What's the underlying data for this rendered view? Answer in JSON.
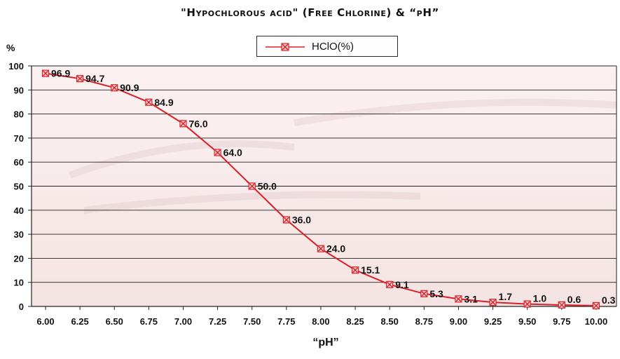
{
  "chart_data": {
    "type": "line",
    "title": "\"Hypochlorous acid\" (Free Chlorine)  &  “pH”",
    "xlabel": "“pH”",
    "ylabel": "%",
    "x": [
      "6.00",
      "6.25",
      "6.50",
      "6.75",
      "7.00",
      "7.25",
      "7.50",
      "7.75",
      "8.00",
      "8.25",
      "8.50",
      "8.75",
      "9.00",
      "9.25",
      "9.50",
      "9.75",
      "10.00"
    ],
    "series": [
      {
        "name": "HClO(%)",
        "values": [
          96.9,
          94.7,
          90.9,
          84.9,
          76.0,
          64.0,
          50.0,
          36.0,
          24.0,
          15.1,
          9.1,
          5.3,
          3.1,
          1.7,
          1.0,
          0.6,
          0.3
        ],
        "labels": [
          "96.9",
          "94.7",
          "90.9",
          "84.9",
          "76.0",
          "64.0",
          "50.0",
          "36.0",
          "24.0",
          "15.1",
          "9.1",
          "5.3",
          "3.1",
          "1.7",
          "1.0",
          "0.6",
          "0.3"
        ],
        "color": "#d81f26",
        "marker": "x-box"
      }
    ],
    "yticks": [
      0,
      10,
      20,
      30,
      40,
      50,
      60,
      70,
      80,
      90,
      100
    ],
    "ylim": [
      0,
      100
    ],
    "grid": true,
    "legend_position": "top-center",
    "background": "water-splash photo tinted pink"
  }
}
